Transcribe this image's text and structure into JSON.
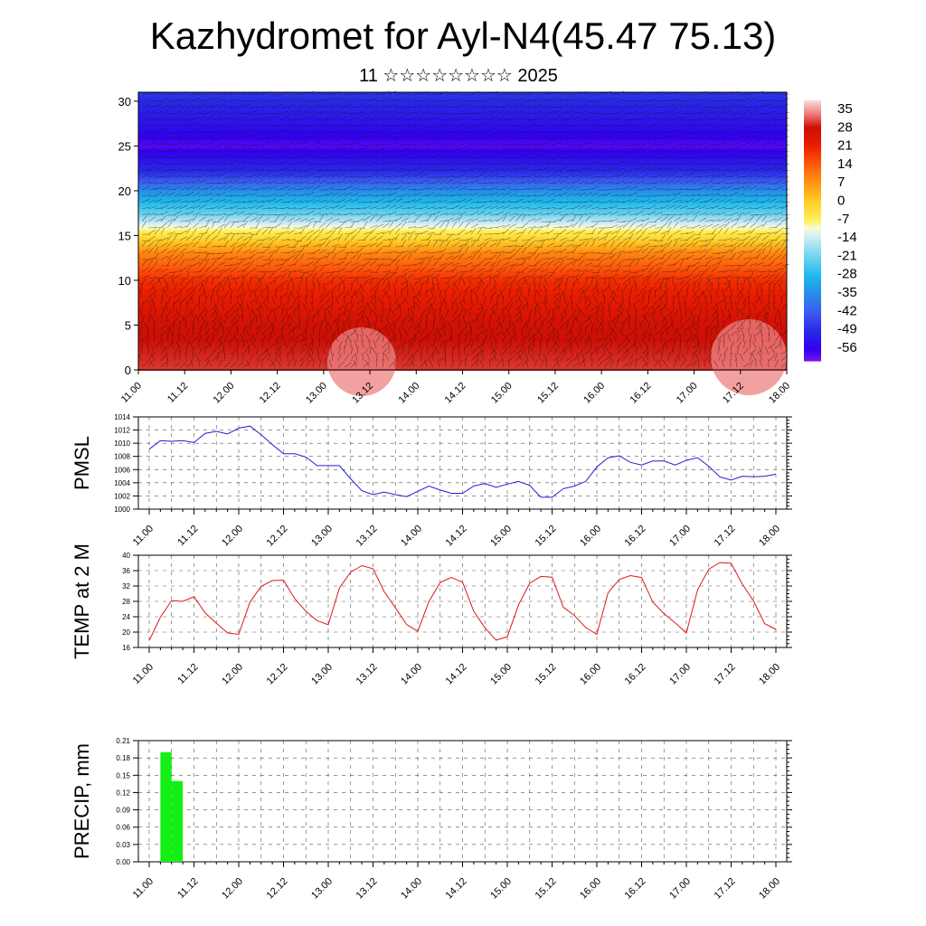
{
  "title": "Kazhydromet for Ayl-N4(45.47 75.13)",
  "subtitle": "11 ☆☆☆☆☆☆☆☆ 2025",
  "colors": {
    "pmsl_line": "#1f1fd6",
    "temp_line": "#e01818",
    "precip_bar": "#14f014",
    "grid": "#555555"
  },
  "chart_data": [
    {
      "type": "heatmap",
      "name": "upper-air-cross-section",
      "x_labels": [
        "11.00",
        "11.12",
        "12.00",
        "12.12",
        "13.00",
        "13.12",
        "14.00",
        "14.12",
        "15.00",
        "15.12",
        "16.00",
        "16.12",
        "17.00",
        "17.12",
        "18.00"
      ],
      "y_ticks": [
        0,
        5,
        10,
        15,
        20,
        25,
        30
      ],
      "ylim": [
        0,
        31
      ],
      "colorbar_labels": [
        "35",
        "28",
        "21",
        "14",
        "7",
        "0",
        "-7",
        "-14",
        "-21",
        "-28",
        "-35",
        "-42",
        "-49",
        "-56"
      ],
      "colorbar_range": [
        -60,
        38
      ],
      "wind_barbs": true,
      "value_profile_by_level": [
        [
          0,
          30
        ],
        [
          5,
          27
        ],
        [
          10,
          19
        ],
        [
          13,
          9
        ],
        [
          15.5,
          -7
        ],
        [
          17.5,
          -22
        ],
        [
          19.5,
          -32
        ],
        [
          22,
          -48
        ],
        [
          25,
          -58
        ],
        [
          27.5,
          -53
        ],
        [
          31,
          -47
        ]
      ]
    },
    {
      "type": "line",
      "name": "pmsl",
      "ylabel": "PMSL",
      "x_labels": [
        "11.00",
        "11.12",
        "12.00",
        "12.12",
        "13.00",
        "13.12",
        "14.00",
        "14.12",
        "15.00",
        "15.12",
        "16.00",
        "16.12",
        "17.00",
        "17.12",
        "18.00"
      ],
      "y_ticks": [
        "1000",
        "1002",
        "1004",
        "1006",
        "1008",
        "1010",
        "1012",
        "1014"
      ],
      "ylim": [
        1000,
        1014
      ],
      "x_step_hours": 3,
      "values": [
        1009.1,
        1010.4,
        1010.3,
        1010.4,
        1010.1,
        1011.5,
        1011.8,
        1011.4,
        1012.3,
        1012.6,
        1011.3,
        1009.8,
        1008.4,
        1008.4,
        1007.9,
        1006.6,
        1006.6,
        1006.6,
        1004.6,
        1002.8,
        1002.2,
        1002.6,
        1002.2,
        1001.9,
        1002.7,
        1003.5,
        1002.9,
        1002.4,
        1002.4,
        1003.5,
        1003.9,
        1003.3,
        1003.8,
        1004.2,
        1003.6,
        1001.8,
        1001.8,
        1003.1,
        1003.5,
        1004.2,
        1006.4,
        1007.8,
        1008.1,
        1007.1,
        1006.7,
        1007.3,
        1007.3,
        1006.7,
        1007.4,
        1007.8,
        1006.5,
        1004.9,
        1004.4,
        1005.0,
        1004.9,
        1005.0,
        1005.3
      ]
    },
    {
      "type": "line",
      "name": "temp-2m",
      "ylabel": "TEMP at 2 M",
      "x_labels": [
        "11.00",
        "11.12",
        "12.00",
        "12.12",
        "13.00",
        "13.12",
        "14.00",
        "14.12",
        "15.00",
        "15.12",
        "16.00",
        "16.12",
        "17.00",
        "17.12",
        "18.00"
      ],
      "y_ticks": [
        "16",
        "20",
        "24",
        "28",
        "32",
        "36",
        "40"
      ],
      "ylim": [
        16,
        40
      ],
      "x_step_hours": 3,
      "values": [
        17.8,
        23.9,
        28.2,
        28.0,
        29.2,
        25.0,
        22.3,
        19.8,
        19.4,
        27.8,
        31.9,
        33.4,
        33.5,
        28.7,
        25.4,
        23.0,
        21.9,
        31.5,
        35.6,
        37.3,
        36.5,
        30.5,
        26.3,
        22.0,
        20.2,
        28.0,
        32.9,
        34.2,
        33.0,
        25.4,
        21.1,
        17.9,
        18.8,
        27.1,
        32.7,
        34.5,
        34.3,
        26.5,
        24.3,
        21.2,
        19.4,
        30.2,
        33.7,
        34.7,
        34.2,
        27.8,
        24.8,
        22.4,
        19.8,
        31.0,
        36.4,
        38.1,
        37.9,
        32.5,
        28.1,
        22.2,
        20.7
      ]
    },
    {
      "type": "bar",
      "name": "precip",
      "ylabel": "PRECIP, mm",
      "x_labels": [
        "11.00",
        "11.12",
        "12.00",
        "12.12",
        "13.00",
        "13.12",
        "14.00",
        "14.12",
        "15.00",
        "15.12",
        "16.00",
        "16.12",
        "17.00",
        "17.12",
        "18.00"
      ],
      "y_ticks": [
        "0.00",
        "0.03",
        "0.06",
        "0.09",
        "0.12",
        "0.15",
        "0.18",
        "0.21"
      ],
      "ylim": [
        0,
        0.21
      ],
      "bars": [
        {
          "start_hour": 3,
          "end_hour": 6,
          "value": 0.19
        },
        {
          "start_hour": 6,
          "end_hour": 9,
          "value": 0.14
        }
      ]
    }
  ]
}
